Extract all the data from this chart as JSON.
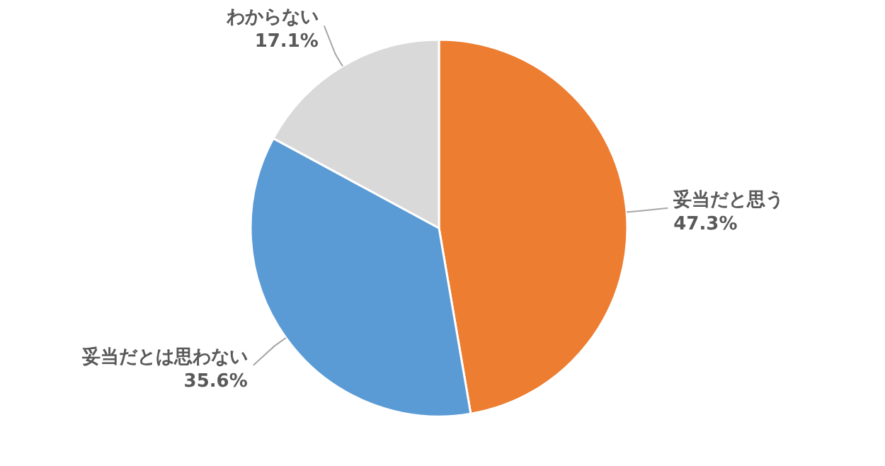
{
  "chart_data": {
    "type": "pie",
    "categories": [
      "妥当だと思う",
      "妥当だとは思わない",
      "わからない"
    ],
    "values": [
      47.3,
      35.6,
      17.1
    ],
    "colors": [
      "#ed7d31",
      "#5b9bd5",
      "#d9d9d9"
    ],
    "value_labels": [
      "47.3%",
      "35.6%",
      "17.1%"
    ]
  }
}
